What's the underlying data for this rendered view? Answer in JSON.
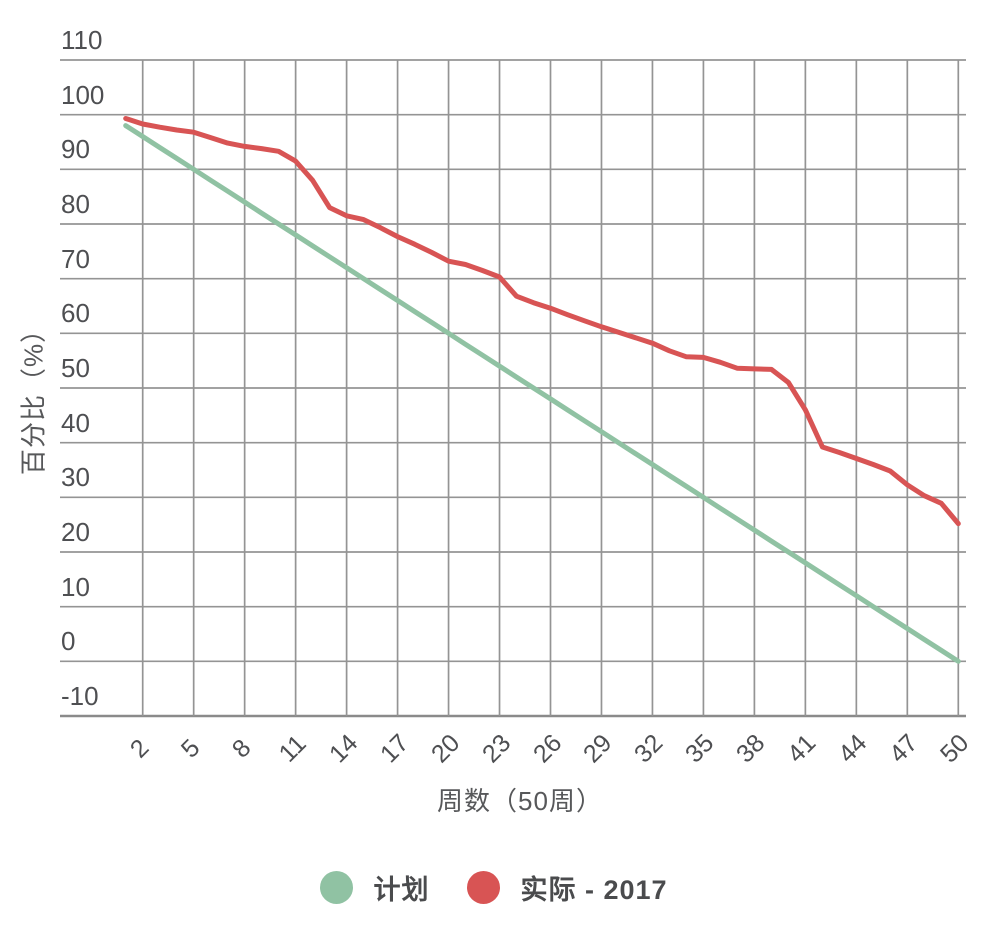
{
  "chart": {
    "y_axis_title": "百分比（%）",
    "x_axis_title": "周数（50周）",
    "grid_color": "#949494",
    "baseline_color": "#8a8a8a",
    "tick_text_color": "#4e4f52"
  },
  "chart_data": {
    "type": "line",
    "title": "",
    "xlabel": "周数（50周）",
    "ylabel": "百分比（%）",
    "x": [
      1,
      2,
      3,
      4,
      5,
      6,
      7,
      8,
      9,
      10,
      11,
      12,
      13,
      14,
      15,
      16,
      17,
      18,
      19,
      20,
      21,
      22,
      23,
      24,
      25,
      26,
      27,
      28,
      29,
      30,
      31,
      32,
      33,
      34,
      35,
      36,
      37,
      38,
      39,
      40,
      41,
      42,
      43,
      44,
      45,
      46,
      47,
      48,
      49,
      50
    ],
    "x_tick_labels": [
      2,
      5,
      8,
      11,
      14,
      17,
      20,
      23,
      26,
      29,
      32,
      35,
      38,
      41,
      44,
      47,
      50
    ],
    "y_ticks": [
      110,
      100,
      90,
      80,
      70,
      60,
      50,
      40,
      30,
      20,
      10,
      0,
      -10
    ],
    "xlim": [
      1,
      50
    ],
    "ylim": [
      -10,
      110
    ],
    "grid": true,
    "legend_position": "bottom",
    "series": [
      {
        "name": "计划",
        "color": "#90c2a3",
        "values": [
          98,
          96,
          94,
          92,
          90,
          88,
          86,
          84,
          82,
          80,
          78,
          76,
          74,
          72,
          70,
          68,
          66,
          64,
          62,
          60,
          58,
          56,
          54,
          52,
          50,
          48,
          46,
          44,
          42,
          40,
          38,
          36,
          34,
          32,
          30,
          28,
          26,
          24,
          22,
          20,
          18,
          16,
          14,
          12,
          10,
          8,
          6,
          4,
          2,
          0
        ]
      },
      {
        "name": "实际 - 2017",
        "color": "#d85454",
        "values": [
          99.3,
          98.3,
          97.7,
          97.2,
          96.8,
          95.8,
          94.8,
          94.2,
          93.8,
          93.3,
          91.5,
          88,
          83,
          81.5,
          80.8,
          79.3,
          77.7,
          76.3,
          74.8,
          73.2,
          72.6,
          71.5,
          70.3,
          66.8,
          65.6,
          64.6,
          63.4,
          62.3,
          61.2,
          60.2,
          59.2,
          58.2,
          56.8,
          55.7,
          55.6,
          54.7,
          53.6,
          53.5,
          53.4,
          51,
          46,
          39.2,
          38.2,
          37.1,
          36,
          34.8,
          32.3,
          30.3,
          28.9,
          25.2
        ]
      }
    ]
  }
}
